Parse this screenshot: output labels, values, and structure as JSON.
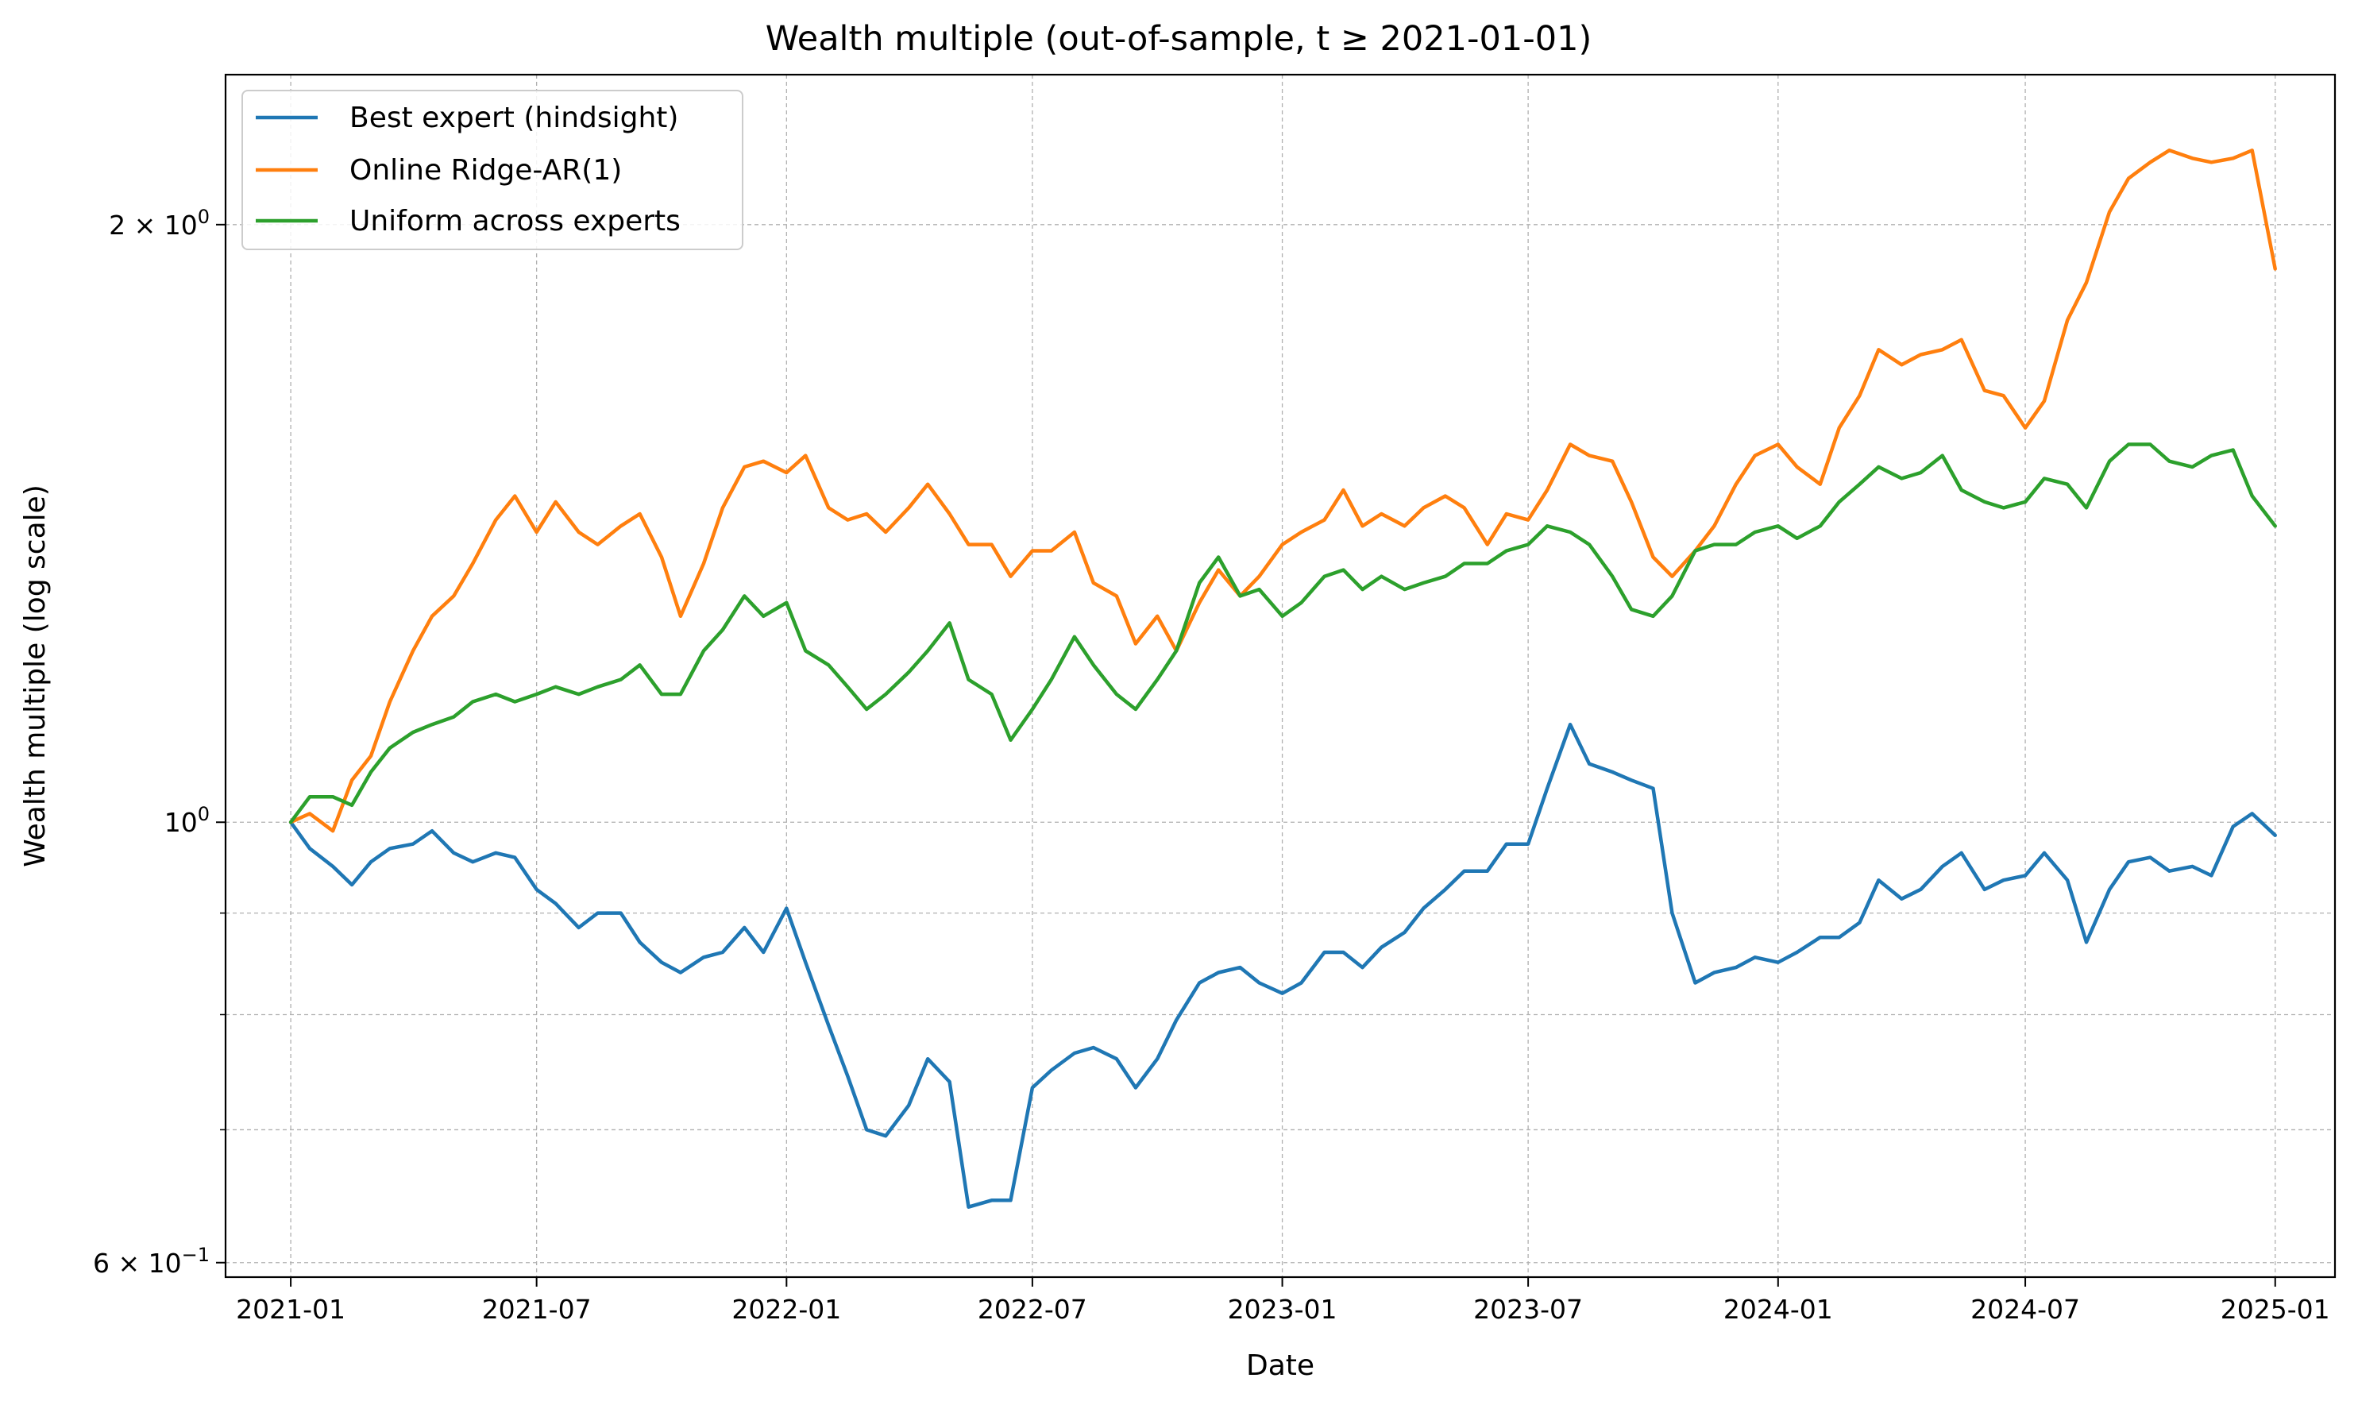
{
  "chart_data": {
    "type": "line",
    "title": "Wealth multiple (out-of-sample, t ≥ 2021-01-01)",
    "xlabel": "Date",
    "ylabel": "Wealth multiple (log scale)",
    "yscale": "log",
    "ylim": [
      0.59,
      2.38
    ],
    "xlim": [
      "2020-11-14",
      "2025-02-14"
    ],
    "x_tick_labels": [
      "2021-01",
      "2021-07",
      "2022-01",
      "2022-07",
      "2023-01",
      "2023-07",
      "2024-01",
      "2024-07",
      "2025-01"
    ],
    "x_tick_dates": [
      "2021-01-01",
      "2021-07-01",
      "2022-01-01",
      "2022-07-01",
      "2023-01-01",
      "2023-07-01",
      "2024-01-01",
      "2024-07-01",
      "2025-01-01"
    ],
    "y_major_ticks": [
      {
        "value": 0.6,
        "base": "6 × 10",
        "exp": "−1"
      },
      {
        "value": 1.0,
        "base": "10",
        "exp": "0"
      },
      {
        "value": 2.0,
        "base": "2 × 10",
        "exp": "0"
      }
    ],
    "y_minor_ticks": [
      0.7,
      0.8,
      0.9
    ],
    "grid": true,
    "legend_position": "upper left",
    "series": [
      {
        "name": "Best expert (hindsight)",
        "color": "#1f77b4",
        "x": [
          "2021-01-01",
          "2021-01-15",
          "2021-02-01",
          "2021-02-15",
          "2021-03-01",
          "2021-03-15",
          "2021-04-01",
          "2021-04-15",
          "2021-05-01",
          "2021-05-15",
          "2021-06-01",
          "2021-06-15",
          "2021-07-01",
          "2021-07-15",
          "2021-08-01",
          "2021-08-15",
          "2021-09-01",
          "2021-09-15",
          "2021-10-01",
          "2021-10-15",
          "2021-11-01",
          "2021-11-15",
          "2021-12-01",
          "2021-12-15",
          "2022-01-01",
          "2022-01-15",
          "2022-02-01",
          "2022-02-15",
          "2022-03-01",
          "2022-03-15",
          "2022-04-01",
          "2022-04-15",
          "2022-05-01",
          "2022-05-15",
          "2022-06-01",
          "2022-06-15",
          "2022-07-01",
          "2022-07-15",
          "2022-08-01",
          "2022-08-15",
          "2022-09-01",
          "2022-09-15",
          "2022-10-01",
          "2022-10-15",
          "2022-11-01",
          "2022-11-15",
          "2022-12-01",
          "2022-12-15",
          "2023-01-01",
          "2023-01-15",
          "2023-02-01",
          "2023-02-15",
          "2023-03-01",
          "2023-03-15",
          "2023-04-01",
          "2023-04-15",
          "2023-05-01",
          "2023-05-15",
          "2023-06-01",
          "2023-06-15",
          "2023-07-01",
          "2023-07-15",
          "2023-08-01",
          "2023-08-15",
          "2023-09-01",
          "2023-09-15",
          "2023-10-01",
          "2023-10-15",
          "2023-11-01",
          "2023-11-15",
          "2023-12-01",
          "2023-12-15",
          "2024-01-01",
          "2024-01-15",
          "2024-02-01",
          "2024-02-15",
          "2024-03-01",
          "2024-03-15",
          "2024-04-01",
          "2024-04-15",
          "2024-05-01",
          "2024-05-15",
          "2024-06-01",
          "2024-06-15",
          "2024-07-01",
          "2024-07-15",
          "2024-08-01",
          "2024-08-15",
          "2024-09-01",
          "2024-09-15",
          "2024-10-01",
          "2024-10-15",
          "2024-11-01",
          "2024-11-15",
          "2024-12-01",
          "2024-12-15",
          "2025-01-01"
        ],
        "values": [
          1.0,
          0.97,
          0.95,
          0.93,
          0.955,
          0.97,
          0.975,
          0.99,
          0.965,
          0.955,
          0.965,
          0.96,
          0.925,
          0.91,
          0.885,
          0.9,
          0.9,
          0.87,
          0.85,
          0.84,
          0.855,
          0.86,
          0.885,
          0.86,
          0.905,
          0.85,
          0.79,
          0.745,
          0.7,
          0.695,
          0.72,
          0.76,
          0.74,
          0.64,
          0.645,
          0.645,
          0.735,
          0.75,
          0.765,
          0.77,
          0.76,
          0.735,
          0.76,
          0.795,
          0.83,
          0.84,
          0.845,
          0.83,
          0.82,
          0.83,
          0.86,
          0.86,
          0.845,
          0.865,
          0.88,
          0.905,
          0.925,
          0.945,
          0.945,
          0.975,
          0.975,
          1.04,
          1.12,
          1.07,
          1.06,
          1.05,
          1.04,
          0.9,
          0.83,
          0.84,
          0.845,
          0.855,
          0.85,
          0.86,
          0.875,
          0.875,
          0.89,
          0.935,
          0.915,
          0.925,
          0.95,
          0.965,
          0.925,
          0.935,
          0.94,
          0.965,
          0.935,
          0.87,
          0.925,
          0.955,
          0.96,
          0.945,
          0.95,
          0.94,
          0.995,
          1.01,
          0.985
        ]
      },
      {
        "name": "Online Ridge-AR(1)",
        "color": "#ff7f0e",
        "x": [
          "2021-01-01",
          "2021-01-15",
          "2021-02-01",
          "2021-02-15",
          "2021-03-01",
          "2021-03-15",
          "2021-04-01",
          "2021-04-15",
          "2021-05-01",
          "2021-05-15",
          "2021-06-01",
          "2021-06-15",
          "2021-07-01",
          "2021-07-15",
          "2021-08-01",
          "2021-08-15",
          "2021-09-01",
          "2021-09-15",
          "2021-10-01",
          "2021-10-15",
          "2021-11-01",
          "2021-11-15",
          "2021-12-01",
          "2021-12-15",
          "2022-01-01",
          "2022-01-15",
          "2022-02-01",
          "2022-02-15",
          "2022-03-01",
          "2022-03-15",
          "2022-04-01",
          "2022-04-15",
          "2022-05-01",
          "2022-05-15",
          "2022-06-01",
          "2022-06-15",
          "2022-07-01",
          "2022-07-15",
          "2022-08-01",
          "2022-08-15",
          "2022-09-01",
          "2022-09-15",
          "2022-10-01",
          "2022-10-15",
          "2022-11-01",
          "2022-11-15",
          "2022-12-01",
          "2022-12-15",
          "2023-01-01",
          "2023-01-15",
          "2023-02-01",
          "2023-02-15",
          "2023-03-01",
          "2023-03-15",
          "2023-04-01",
          "2023-04-15",
          "2023-05-01",
          "2023-05-15",
          "2023-06-01",
          "2023-06-15",
          "2023-07-01",
          "2023-07-15",
          "2023-08-01",
          "2023-08-15",
          "2023-09-01",
          "2023-09-15",
          "2023-10-01",
          "2023-10-15",
          "2023-11-01",
          "2023-11-15",
          "2023-12-01",
          "2023-12-15",
          "2024-01-01",
          "2024-01-15",
          "2024-02-01",
          "2024-02-15",
          "2024-03-01",
          "2024-03-15",
          "2024-04-01",
          "2024-04-15",
          "2024-05-01",
          "2024-05-15",
          "2024-06-01",
          "2024-06-15",
          "2024-07-01",
          "2024-07-15",
          "2024-08-01",
          "2024-08-15",
          "2024-09-01",
          "2024-09-15",
          "2024-10-01",
          "2024-10-15",
          "2024-11-01",
          "2024-11-15",
          "2024-12-01",
          "2024-12-15",
          "2025-01-01"
        ],
        "values": [
          1.0,
          1.01,
          0.99,
          1.05,
          1.08,
          1.15,
          1.22,
          1.27,
          1.3,
          1.35,
          1.42,
          1.46,
          1.4,
          1.45,
          1.4,
          1.38,
          1.41,
          1.43,
          1.36,
          1.27,
          1.35,
          1.44,
          1.51,
          1.52,
          1.5,
          1.53,
          1.44,
          1.42,
          1.43,
          1.4,
          1.44,
          1.48,
          1.43,
          1.38,
          1.38,
          1.33,
          1.37,
          1.37,
          1.4,
          1.32,
          1.3,
          1.23,
          1.27,
          1.22,
          1.29,
          1.34,
          1.3,
          1.33,
          1.38,
          1.4,
          1.42,
          1.47,
          1.41,
          1.43,
          1.41,
          1.44,
          1.46,
          1.44,
          1.38,
          1.43,
          1.42,
          1.47,
          1.55,
          1.53,
          1.52,
          1.45,
          1.36,
          1.33,
          1.37,
          1.41,
          1.48,
          1.53,
          1.55,
          1.51,
          1.48,
          1.58,
          1.64,
          1.73,
          1.7,
          1.72,
          1.73,
          1.75,
          1.65,
          1.64,
          1.58,
          1.63,
          1.79,
          1.87,
          2.03,
          2.11,
          2.15,
          2.18,
          2.16,
          2.15,
          2.16,
          2.18,
          1.9
        ]
      },
      {
        "name": "Uniform across experts",
        "color": "#2ca02c",
        "x": [
          "2021-01-01",
          "2021-01-15",
          "2021-02-01",
          "2021-02-15",
          "2021-03-01",
          "2021-03-15",
          "2021-04-01",
          "2021-04-15",
          "2021-05-01",
          "2021-05-15",
          "2021-06-01",
          "2021-06-15",
          "2021-07-01",
          "2021-07-15",
          "2021-08-01",
          "2021-08-15",
          "2021-09-01",
          "2021-09-15",
          "2021-10-01",
          "2021-10-15",
          "2021-11-01",
          "2021-11-15",
          "2021-12-01",
          "2021-12-15",
          "2022-01-01",
          "2022-01-15",
          "2022-02-01",
          "2022-02-15",
          "2022-03-01",
          "2022-03-15",
          "2022-04-01",
          "2022-04-15",
          "2022-05-01",
          "2022-05-15",
          "2022-06-01",
          "2022-06-15",
          "2022-07-01",
          "2022-07-15",
          "2022-08-01",
          "2022-08-15",
          "2022-09-01",
          "2022-09-15",
          "2022-10-01",
          "2022-10-15",
          "2022-11-01",
          "2022-11-15",
          "2022-12-01",
          "2022-12-15",
          "2023-01-01",
          "2023-01-15",
          "2023-02-01",
          "2023-02-15",
          "2023-03-01",
          "2023-03-15",
          "2023-04-01",
          "2023-04-15",
          "2023-05-01",
          "2023-05-15",
          "2023-06-01",
          "2023-06-15",
          "2023-07-01",
          "2023-07-15",
          "2023-08-01",
          "2023-08-15",
          "2023-09-01",
          "2023-09-15",
          "2023-10-01",
          "2023-10-15",
          "2023-11-01",
          "2023-11-15",
          "2023-12-01",
          "2023-12-15",
          "2024-01-01",
          "2024-01-15",
          "2024-02-01",
          "2024-02-15",
          "2024-03-01",
          "2024-03-15",
          "2024-04-01",
          "2024-04-15",
          "2024-05-01",
          "2024-05-15",
          "2024-06-01",
          "2024-06-15",
          "2024-07-01",
          "2024-07-15",
          "2024-08-01",
          "2024-08-15",
          "2024-09-01",
          "2024-09-15",
          "2024-10-01",
          "2024-10-15",
          "2024-11-01",
          "2024-11-15",
          "2024-12-01",
          "2024-12-15",
          "2025-01-01"
        ],
        "values": [
          1.0,
          1.03,
          1.03,
          1.02,
          1.06,
          1.09,
          1.11,
          1.12,
          1.13,
          1.15,
          1.16,
          1.15,
          1.16,
          1.17,
          1.16,
          1.17,
          1.18,
          1.2,
          1.16,
          1.16,
          1.22,
          1.25,
          1.3,
          1.27,
          1.29,
          1.22,
          1.2,
          1.17,
          1.14,
          1.16,
          1.19,
          1.22,
          1.26,
          1.18,
          1.16,
          1.1,
          1.14,
          1.18,
          1.24,
          1.2,
          1.16,
          1.14,
          1.18,
          1.22,
          1.32,
          1.36,
          1.3,
          1.31,
          1.27,
          1.29,
          1.33,
          1.34,
          1.31,
          1.33,
          1.31,
          1.32,
          1.33,
          1.35,
          1.35,
          1.37,
          1.38,
          1.41,
          1.4,
          1.38,
          1.33,
          1.28,
          1.27,
          1.3,
          1.37,
          1.38,
          1.38,
          1.4,
          1.41,
          1.39,
          1.41,
          1.45,
          1.48,
          1.51,
          1.49,
          1.5,
          1.53,
          1.47,
          1.45,
          1.44,
          1.45,
          1.49,
          1.48,
          1.44,
          1.52,
          1.55,
          1.55,
          1.52,
          1.51,
          1.53,
          1.54,
          1.46,
          1.41
        ]
      }
    ]
  }
}
